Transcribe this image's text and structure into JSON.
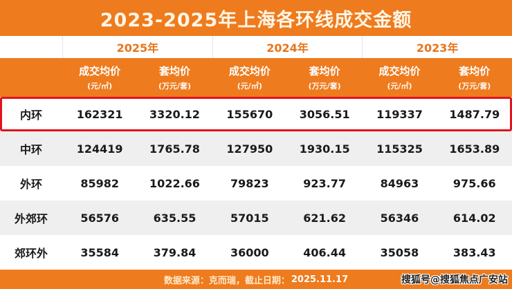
{
  "title": "2023-2025年上海各环线成交金额",
  "chart_data": {
    "type": "table",
    "title": "2023-2025年上海各环线成交金额",
    "year_groups": [
      "2025年",
      "2024年",
      "2023年"
    ],
    "metric_columns": [
      {
        "label": "成交均价",
        "unit": "(元/㎡)"
      },
      {
        "label": "套均价",
        "unit": "(万元/套)"
      }
    ],
    "rows": [
      {
        "name": "内环",
        "highlight": true,
        "values": [
          "162321",
          "3320.12",
          "155670",
          "3056.51",
          "119337",
          "1487.79"
        ]
      },
      {
        "name": "中环",
        "highlight": false,
        "values": [
          "124419",
          "1765.78",
          "127950",
          "1930.15",
          "115325",
          "1653.89"
        ]
      },
      {
        "name": "外环",
        "highlight": false,
        "values": [
          "85982",
          "1022.66",
          "79823",
          "923.77",
          "84963",
          "975.66"
        ]
      },
      {
        "name": "外郊环",
        "highlight": false,
        "values": [
          "56576",
          "635.55",
          "57015",
          "621.62",
          "56346",
          "614.02"
        ]
      },
      {
        "name": "郊环外",
        "highlight": false,
        "values": [
          "35584",
          "379.84",
          "36000",
          "406.44",
          "35058",
          "383.43"
        ]
      }
    ]
  },
  "footer": {
    "label": "数据来源：克而瑞，截止日期：",
    "date": "2025.11.17"
  },
  "watermark": "搜狐号@搜狐焦点广安站",
  "colors": {
    "orange": "#EE7B1E",
    "title_text": "#FFF6E6",
    "year_text": "#E8731A",
    "highlight_border": "#E3121B",
    "row_alt": "#EFEFEF",
    "text": "#1A1A1A"
  }
}
